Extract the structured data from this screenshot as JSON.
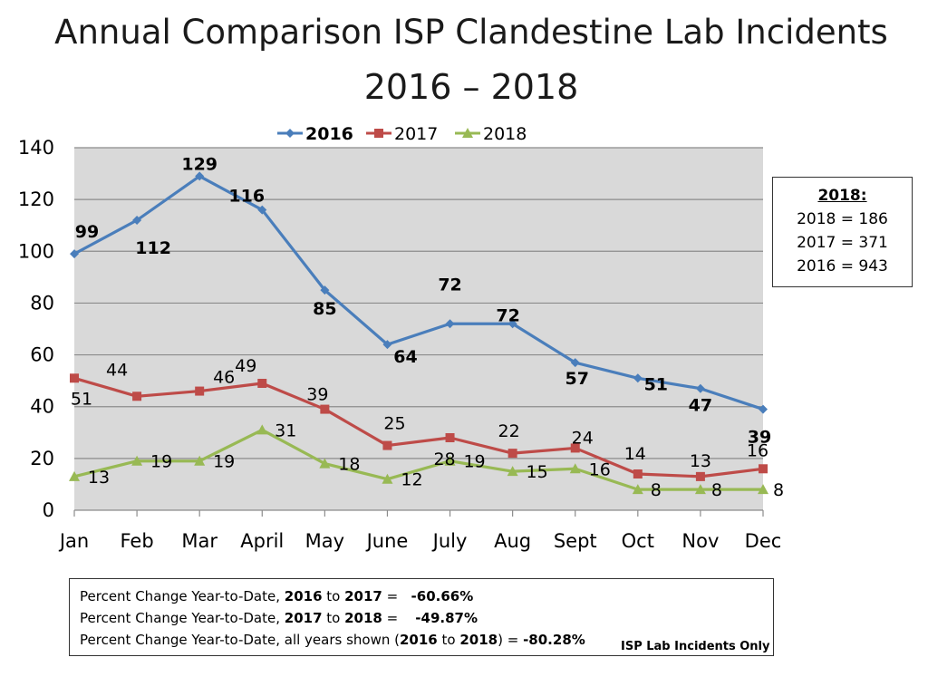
{
  "chart_data": {
    "type": "line",
    "title": "Annual Comparison ISP Clandestine Lab Incidents",
    "subtitle": "2016 – 2018",
    "categories": [
      "Jan",
      "Feb",
      "Mar",
      "April",
      "May",
      "June",
      "July",
      "Aug",
      "Sept",
      "Oct",
      "Nov",
      "Dec"
    ],
    "ylim": [
      0,
      140
    ],
    "yticks": [
      0,
      20,
      40,
      60,
      80,
      100,
      120,
      140
    ],
    "grid": true,
    "legend_position": "top",
    "series": [
      {
        "name": "2016",
        "color": "#4a7ebb",
        "marker": "diamond",
        "values": [
          99,
          112,
          129,
          116,
          85,
          64,
          72,
          72,
          57,
          51,
          47,
          39
        ]
      },
      {
        "name": "2017",
        "color": "#be4b48",
        "marker": "square",
        "values": [
          51,
          44,
          46,
          49,
          39,
          25,
          28,
          22,
          24,
          14,
          13,
          16
        ]
      },
      {
        "name": "2018",
        "color": "#98b954",
        "marker": "triangle",
        "values": [
          13,
          19,
          19,
          31,
          18,
          12,
          19,
          15,
          16,
          8,
          8,
          8
        ]
      }
    ]
  },
  "summary": {
    "heading": "2018:",
    "lines": [
      "2018 = 186",
      "2017 = 371",
      "2016 = 943"
    ]
  },
  "footer": {
    "line1": {
      "pre": "Percent Change Year-to-Date, ",
      "a": "2016",
      "mid": " to ",
      "b": "2017",
      "post": " = ",
      "value": "-60.66%"
    },
    "line2": {
      "pre": "Percent Change Year-to-Date, ",
      "a": "2017",
      "mid": " to ",
      "b": "2018",
      "post": " = ",
      "value": "-49.87%"
    },
    "line3": {
      "pre": "Percent Change Year-to-Date, all years shown (",
      "a": "2016",
      "mid": " to ",
      "b": "2018",
      "post": ") = ",
      "value": "-80.28%"
    },
    "note": "ISP Lab Incidents Only"
  }
}
